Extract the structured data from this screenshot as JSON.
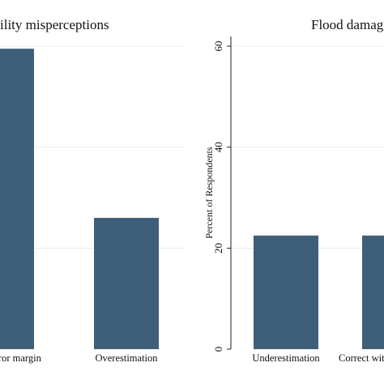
{
  "chart_data": [
    {
      "type": "bar",
      "title": "ility misperceptions",
      "categories": [
        "within error margin",
        "Overestimation"
      ],
      "values": [
        59.5,
        26.0
      ],
      "ylim": [
        0,
        65
      ],
      "grid": true,
      "bar_color": "#3f5f78"
    },
    {
      "type": "bar",
      "title": "Flood damag",
      "ylabel": "Percent of Respondents",
      "categories": [
        "Underestimation",
        "Correct wit"
      ],
      "values": [
        22.5,
        22.5
      ],
      "yticks": [
        "0",
        "20",
        "40",
        "60"
      ],
      "ylim": [
        0,
        60
      ],
      "grid": true,
      "bar_color": "#3f5f78"
    }
  ]
}
